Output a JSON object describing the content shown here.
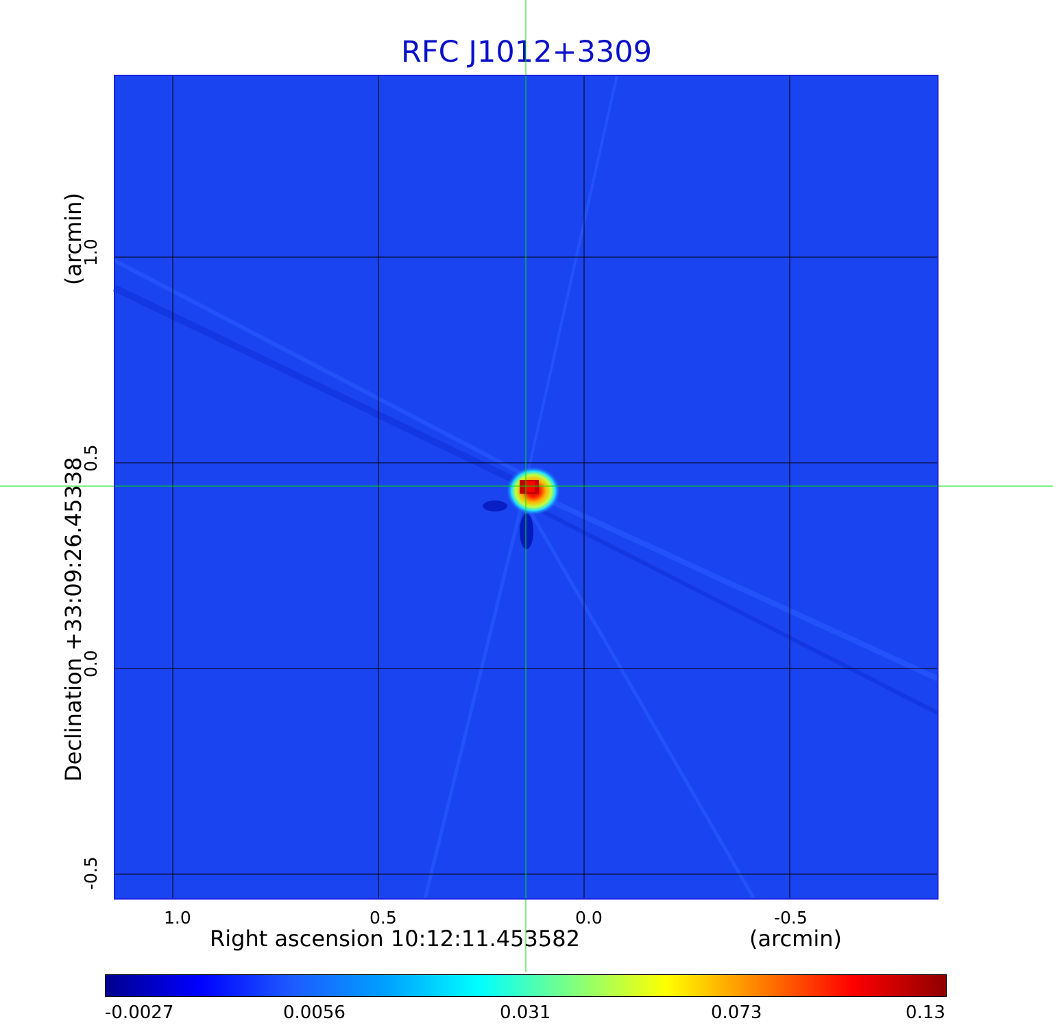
{
  "title": "RFC J1012+3309",
  "x_axis": {
    "label": "Right ascension  10:12:11.453582",
    "unit": "(arcmin)",
    "ticks": [
      "1.0",
      "0.5",
      "0.0",
      "-0.5"
    ]
  },
  "y_axis": {
    "label": "Declination  +33:09:26.45338",
    "unit": "(arcmin)",
    "ticks": [
      "1.0",
      "0.5",
      "0.0",
      "-0.5"
    ]
  },
  "colorbar": {
    "ticks": [
      "-0.0027",
      "0.0056",
      "0.031",
      "0.073",
      "0.13"
    ],
    "colors": [
      "#00008f",
      "#0000ff",
      "#1e5bff",
      "#00a0ff",
      "#00ffff",
      "#7fff7f",
      "#ffff00",
      "#ff8000",
      "#ff0000",
      "#8f0000"
    ]
  },
  "image": {
    "background_color": "#1a44f0",
    "grid_color": "#000000",
    "crosshair_color": "#00ff00"
  }
}
